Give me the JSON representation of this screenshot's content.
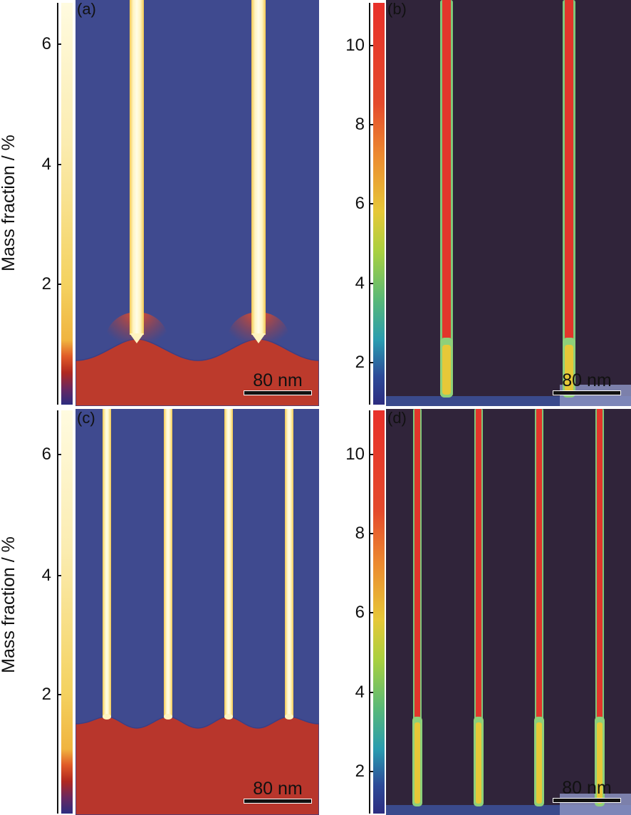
{
  "colors": {
    "matrix_blue": "#3f4a8f",
    "liquid_red": "#bc3a2c",
    "fiber_core": "#fffbd4",
    "fiber_glow": "#f8d86a",
    "dark_bg": "#30243a",
    "fiber_red": "#e2362b",
    "fiber_green_edge": "#8ed07a"
  },
  "panels": [
    {
      "label": "(a)",
      "axis_label": "Mass fraction / %",
      "ticks": [
        "2",
        "4",
        "6"
      ],
      "colormap": "cream-yellow-red-purple"
    },
    {
      "label": "(b)",
      "ticks": [
        "2",
        "4",
        "6",
        "8",
        "10"
      ],
      "colormap": "red-yellow-green-blue"
    },
    {
      "label": "(c)",
      "axis_label": "Mass fraction / %",
      "ticks": [
        "2",
        "4",
        "6"
      ],
      "colormap": "cream-yellow-red-purple"
    },
    {
      "label": "(d)",
      "ticks": [
        "2",
        "4",
        "6",
        "8",
        "10"
      ],
      "colormap": "red-yellow-green-blue"
    }
  ],
  "scalebar": "80 nm"
}
